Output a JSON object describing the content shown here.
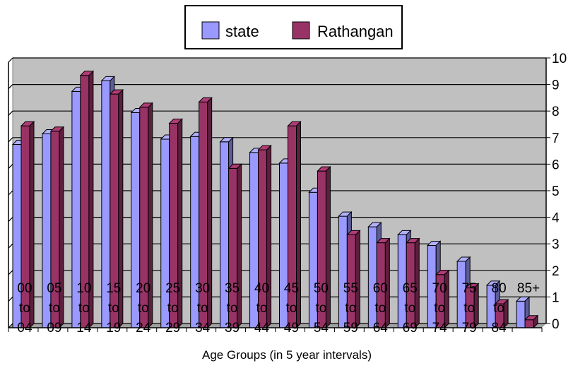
{
  "chart_data": {
    "type": "bar",
    "xlabel": "Age Groups (in 5 year intervals)",
    "ylabel": "",
    "ylim": [
      0,
      10
    ],
    "yticks": [
      "0",
      "1",
      "2",
      "3",
      "4",
      "5",
      "6",
      "7",
      "8",
      "9",
      "10"
    ],
    "categories": [
      [
        "00",
        "to",
        "04"
      ],
      [
        "05",
        "to",
        "09"
      ],
      [
        "10",
        "to",
        "14"
      ],
      [
        "15",
        "to",
        "19"
      ],
      [
        "20",
        "to",
        "24"
      ],
      [
        "25",
        "to",
        "29"
      ],
      [
        "30",
        "to",
        "34"
      ],
      [
        "35",
        "to",
        "39"
      ],
      [
        "40",
        "to",
        "44"
      ],
      [
        "45",
        "to",
        "49"
      ],
      [
        "50",
        "to",
        "54"
      ],
      [
        "55",
        "to",
        "59"
      ],
      [
        "60",
        "to",
        "64"
      ],
      [
        "65",
        "to",
        "69"
      ],
      [
        "70",
        "to",
        "74"
      ],
      [
        "75",
        "to",
        "79"
      ],
      [
        "80",
        "to",
        "84"
      ],
      [
        "85+"
      ]
    ],
    "series": [
      {
        "name": "state",
        "color": "#9999ff",
        "values": [
          6.9,
          7.3,
          8.9,
          9.3,
          8.1,
          7.1,
          7.2,
          7.0,
          6.6,
          6.2,
          5.1,
          4.2,
          3.8,
          3.5,
          3.1,
          2.5,
          1.6,
          1.0
        ]
      },
      {
        "name": "Rathangan",
        "color": "#993366",
        "values": [
          7.6,
          7.4,
          9.5,
          8.8,
          8.3,
          7.7,
          8.5,
          6.0,
          6.7,
          7.6,
          5.9,
          3.5,
          3.2,
          3.2,
          2.0,
          1.5,
          0.9,
          0.3
        ]
      }
    ],
    "grid": true,
    "legend_position": "top"
  }
}
